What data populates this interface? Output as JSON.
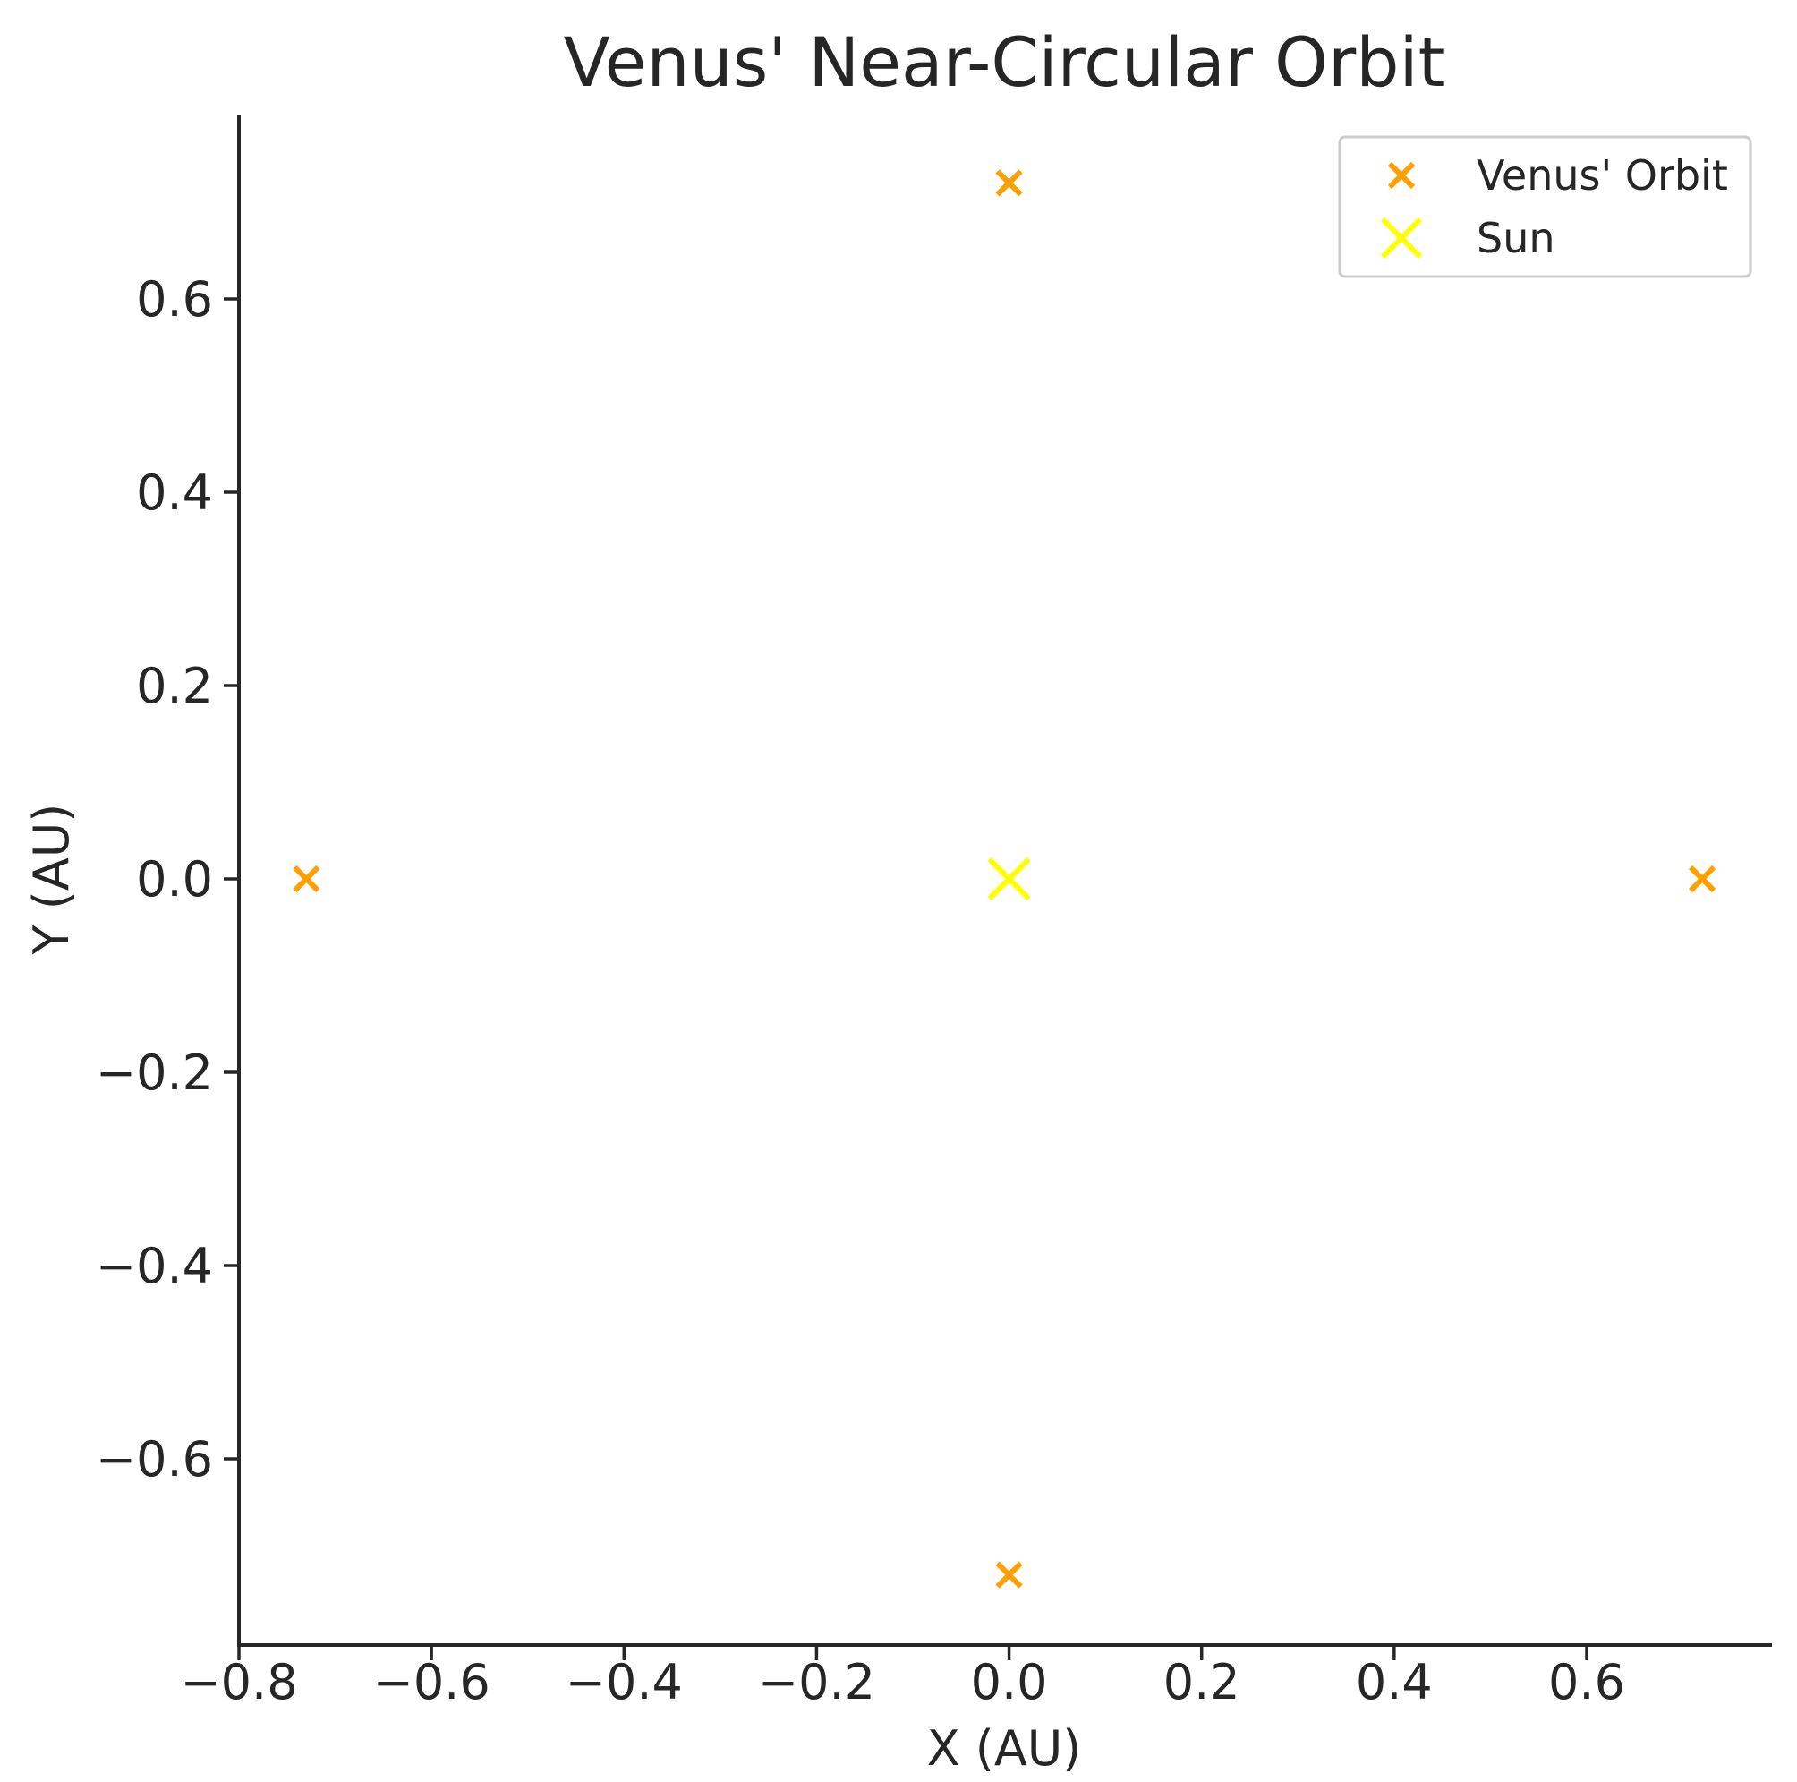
{
  "chart_data": {
    "type": "scatter",
    "title": "Venus' Near-Circular Orbit",
    "xlabel": "X (AU)",
    "ylabel": "Y (AU)",
    "xlim": [
      -0.8,
      0.79
    ],
    "ylim": [
      -0.79,
      0.79
    ],
    "xticks": [
      -0.8,
      -0.6,
      -0.4,
      -0.2,
      0.0,
      0.2,
      0.4,
      0.6
    ],
    "xtick_labels": [
      "−0.8",
      "−0.6",
      "−0.4",
      "−0.2",
      "0.0",
      "0.2",
      "0.4",
      "0.6"
    ],
    "yticks": [
      -0.6,
      -0.4,
      -0.2,
      0.0,
      0.2,
      0.4,
      0.6
    ],
    "ytick_labels": [
      "−0.6",
      "−0.4",
      "−0.2",
      "0.0",
      "0.2",
      "0.4",
      "0.6"
    ],
    "grid": false,
    "legend_position": "top-right",
    "series": [
      {
        "name": "Venus' Orbit",
        "marker": "x",
        "color": "#FF9F00",
        "points": [
          {
            "x": 0.72,
            "y": 0.0
          },
          {
            "x": 0.0,
            "y": 0.72
          },
          {
            "x": -0.73,
            "y": 0.0
          },
          {
            "x": 0.0,
            "y": -0.72
          }
        ]
      },
      {
        "name": "Sun",
        "marker": "x",
        "color": "#FFFF00",
        "points": [
          {
            "x": 0.0,
            "y": 0.0
          }
        ]
      }
    ]
  }
}
